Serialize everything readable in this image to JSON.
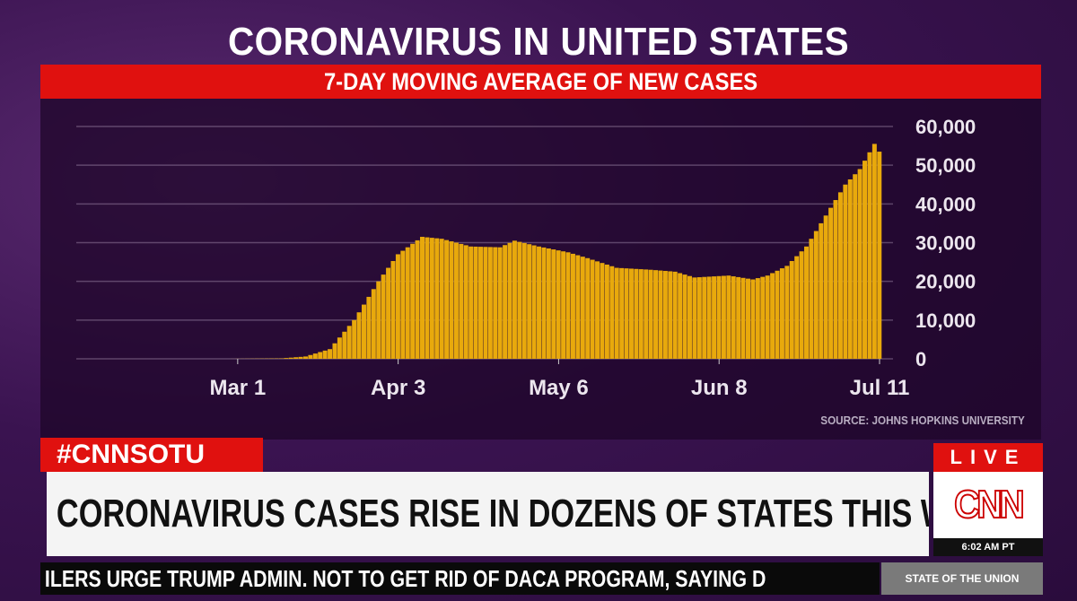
{
  "title": "CORONAVIRUS IN UNITED STATES",
  "subtitle": "7-DAY MOVING AVERAGE OF NEW CASES",
  "source": "SOURCE: JOHNS HOPKINS UNIVERSITY",
  "lower_third": {
    "hashtag": "#CNNSOTU",
    "headline": "CORONAVIRUS CASES RISE IN DOZENS OF STATES THIS WEEK",
    "live": "LIVE",
    "logo": "CNN",
    "time": "6:02 AM PT",
    "ticker": "ILERS URGE TRUMP ADMIN. NOT TO GET RID OF DACA PROGRAM, SAYING D",
    "show": "STATE OF THE UNION"
  },
  "colors": {
    "bar": "#e8a90c",
    "accent": "#e0110f",
    "background": "#3a1350"
  },
  "chart_data": {
    "type": "bar",
    "title": "CORONAVIRUS IN UNITED STATES",
    "subtitle": "7-DAY MOVING AVERAGE OF NEW CASES",
    "x_ticks": [
      "Mar 1",
      "Apr 3",
      "May 6",
      "Jun 8",
      "Jul 11"
    ],
    "y_ticks": [
      "0",
      "10,000",
      "20,000",
      "30,000",
      "40,000",
      "50,000",
      "60,000"
    ],
    "ylim": [
      0,
      60000
    ],
    "xlim": [
      "2020-02-28",
      "2020-07-11"
    ],
    "grid": true,
    "points": [
      [
        "2020-02-28",
        0
      ],
      [
        "2020-03-10",
        100
      ],
      [
        "2020-03-15",
        600
      ],
      [
        "2020-03-20",
        2500
      ],
      [
        "2020-03-25",
        10000
      ],
      [
        "2020-03-30",
        20000
      ],
      [
        "2020-04-03",
        27000
      ],
      [
        "2020-04-08",
        31500
      ],
      [
        "2020-04-12",
        31000
      ],
      [
        "2020-04-18",
        29000
      ],
      [
        "2020-04-24",
        28800
      ],
      [
        "2020-04-27",
        30500
      ],
      [
        "2020-05-02",
        29000
      ],
      [
        "2020-05-08",
        27500
      ],
      [
        "2020-05-12",
        26000
      ],
      [
        "2020-05-18",
        23500
      ],
      [
        "2020-05-25",
        23000
      ],
      [
        "2020-05-30",
        22500
      ],
      [
        "2020-06-03",
        21000
      ],
      [
        "2020-06-10",
        21500
      ],
      [
        "2020-06-15",
        20500
      ],
      [
        "2020-06-18",
        21500
      ],
      [
        "2020-06-22",
        24000
      ],
      [
        "2020-06-26",
        29000
      ],
      [
        "2020-06-30",
        37000
      ],
      [
        "2020-07-04",
        45000
      ],
      [
        "2020-07-07",
        49000
      ],
      [
        "2020-07-10",
        55500
      ],
      [
        "2020-07-11",
        53500
      ]
    ]
  }
}
